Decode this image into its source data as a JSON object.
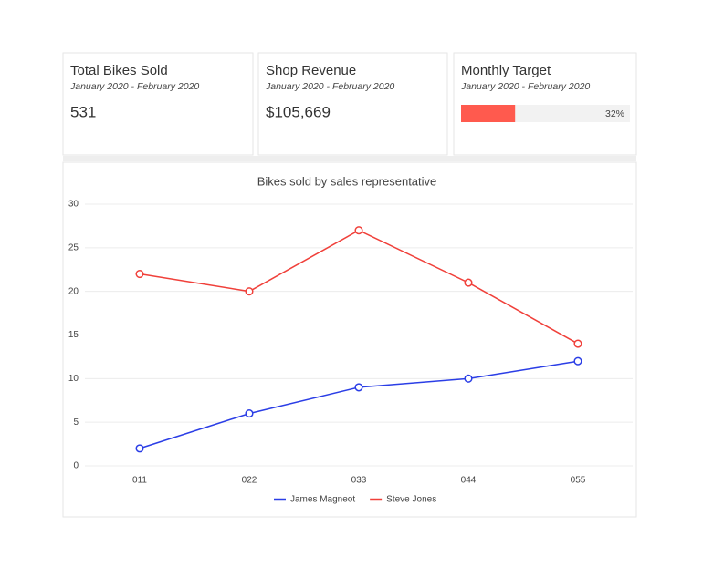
{
  "cards": [
    {
      "title": "Total Bikes Sold",
      "subtitle": "January 2020 - February 2020",
      "value": "531"
    },
    {
      "title": "Shop Revenue",
      "subtitle": "January 2020 - February 2020",
      "value": "$105,669"
    },
    {
      "title": "Monthly Target",
      "subtitle": "January 2020 - February 2020",
      "target": {
        "value": 32,
        "label": "32%"
      },
      "color": "#ff5a4e"
    }
  ],
  "chart_data": {
    "type": "line",
    "title": "Bikes sold by sales representative",
    "categories": [
      "011",
      "022",
      "033",
      "044",
      "055"
    ],
    "series": [
      {
        "name": "James Magneot",
        "color": "#2b3ee6",
        "values": [
          2,
          6,
          9,
          10,
          12
        ]
      },
      {
        "name": "Steve Jones",
        "color": "#f0403a",
        "values": [
          22,
          20,
          27,
          21,
          14
        ]
      }
    ],
    "ylim": [
      0,
      30
    ],
    "yticks": [
      0,
      5,
      10,
      15,
      20,
      25,
      30
    ],
    "grid": true,
    "legend": "bottom"
  }
}
